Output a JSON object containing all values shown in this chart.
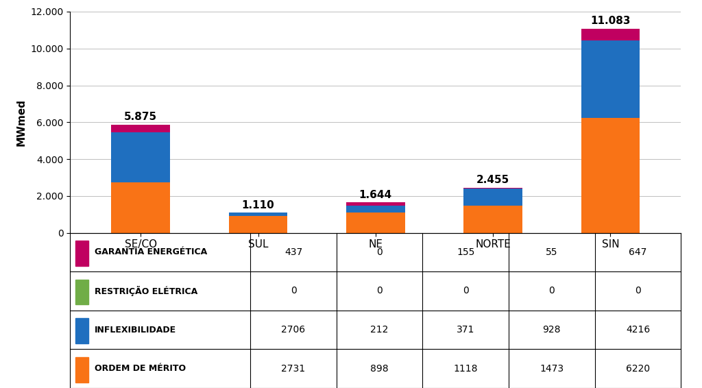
{
  "categories": [
    "SE/CO",
    "SUL",
    "NE",
    "NORTE",
    "SIN"
  ],
  "series": {
    "ORDEM DE MÉRITO": [
      2731,
      898,
      1118,
      1473,
      6220
    ],
    "INFLEXIBILIDADE": [
      2706,
      212,
      371,
      928,
      4216
    ],
    "RESTRIÇÃO ELÉTRICA": [
      0,
      0,
      0,
      0,
      0
    ],
    "GARANTIA ENERGÉTICA": [
      437,
      0,
      155,
      55,
      647
    ]
  },
  "colors": {
    "ORDEM DE MÉRITO": "#F97316",
    "INFLEXIBILIDADE": "#1F6FBF",
    "RESTRIÇÃO ELÉTRICA": "#70AD47",
    "GARANTIA ENERGÉTICA": "#C00060"
  },
  "totals": [
    "5.875",
    "1.110",
    "1.644",
    "2.455",
    "11.083"
  ],
  "totals_numeric": [
    5874,
    1110,
    1644,
    2456,
    11083
  ],
  "ylabel": "MWmed",
  "ylim": [
    0,
    12000
  ],
  "yticks": [
    0,
    2000,
    4000,
    6000,
    8000,
    10000,
    12000
  ],
  "ytick_labels": [
    "0",
    "2.000",
    "4.000",
    "6.000",
    "8.000",
    "10.000",
    "12.000"
  ],
  "table_rows": [
    [
      "GARANTIA ENERGÉTICA",
      "437",
      "0",
      "155",
      "55",
      "647"
    ],
    [
      "RESTRIÇÃO ELÉTRICA",
      "0",
      "0",
      "0",
      "0",
      "0"
    ],
    [
      "INFLEXIBILIDADE",
      "2706",
      "212",
      "371",
      "928",
      "4216"
    ],
    [
      "ORDEM DE MÉRITO",
      "2731",
      "898",
      "1118",
      "1473",
      "6220"
    ]
  ],
  "table_row_colors": [
    "#C00060",
    "#70AD47",
    "#1F6FBF",
    "#F97316"
  ],
  "bar_width": 0.5,
  "figure_width": 10.24,
  "figure_height": 5.66,
  "dpi": 100
}
